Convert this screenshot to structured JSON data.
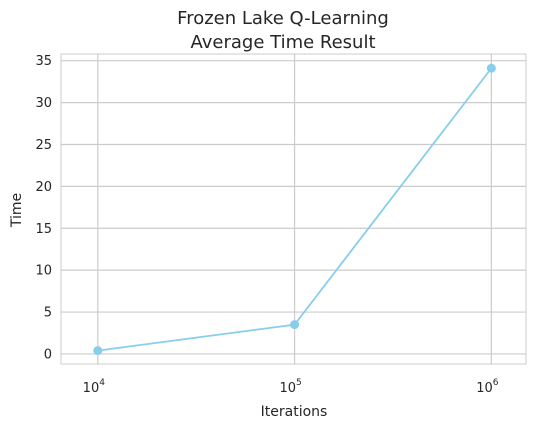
{
  "chart_data": {
    "type": "line",
    "title_lines": [
      "Frozen Lake Q-Learning",
      "Average Time Result"
    ],
    "xlabel": "Iterations",
    "ylabel": "Time",
    "xscale": "log",
    "yticks": [
      0,
      5,
      10,
      15,
      20,
      25,
      30,
      35
    ],
    "xticks": [
      {
        "value": 10000,
        "base": "10",
        "exp": "4"
      },
      {
        "value": 100000,
        "base": "10",
        "exp": "5"
      },
      {
        "value": 1000000,
        "base": "10",
        "exp": "6"
      }
    ],
    "ylim": [
      -1.2,
      35.8
    ],
    "xlim": [
      6500,
      1500000
    ],
    "grid": true,
    "series": [
      {
        "color": "#87ceeb",
        "marker": "circle",
        "x": [
          10000,
          100000,
          1000000
        ],
        "y": [
          0.4,
          3.5,
          34.1
        ]
      }
    ]
  }
}
